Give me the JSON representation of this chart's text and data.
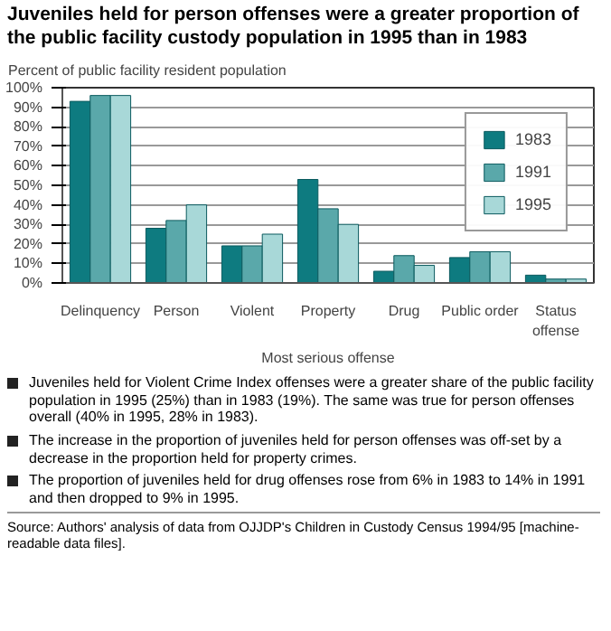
{
  "chart_data": {
    "type": "bar",
    "title": "Juveniles held for person offenses were a greater proportion of the public facility custody population in 1995 than in 1983",
    "ylabel": "Percent of public facility resident population",
    "xlabel": "Most serious offense",
    "categories": [
      "Delinquency",
      "Person",
      "Violent",
      "Property",
      "Drug",
      "Public order",
      "Status offense"
    ],
    "series": [
      {
        "name": "1983",
        "color": "#0e7b80",
        "values": [
          93,
          28,
          19,
          53,
          6,
          13,
          4
        ]
      },
      {
        "name": "1991",
        "color": "#5aa8aa",
        "values": [
          96,
          32,
          19,
          38,
          14,
          16,
          2
        ]
      },
      {
        "name": "1995",
        "color": "#a8d8d8",
        "values": [
          96,
          40,
          25,
          30,
          9,
          16,
          2
        ]
      }
    ],
    "ylim": [
      0,
      100
    ],
    "yticks": [
      {
        "value": 0,
        "label": "0%"
      },
      {
        "value": 10,
        "label": "10%"
      },
      {
        "value": 20,
        "label": "20%"
      },
      {
        "value": 30,
        "label": "30%"
      },
      {
        "value": 40,
        "label": "40%"
      },
      {
        "value": 50,
        "label": "50%"
      },
      {
        "value": 60,
        "label": "60%"
      },
      {
        "value": 70,
        "label": "70%"
      },
      {
        "value": 80,
        "label": "80%"
      },
      {
        "value": 90,
        "label": "90%"
      },
      {
        "value": 100,
        "label": "100%"
      }
    ],
    "grid": "y",
    "legend": "top right",
    "annotations": [
      "Juveniles held for Violent Crime Index offenses were a greater share of the public facility population in 1995 (25%) than in 1983 (19%). The same was true for person offenses overall (40% in 1995, 28% in 1983).",
      "The increase in the proportion of juveniles held for person offenses was off-set by a decrease in the proportion held for property crimes.",
      "The proportion of juveniles held for drug offenses rose from 6% in 1983 to 14% in 1991 and then dropped to 9% in 1995.",
      "Source: Authors' analysis of data from OJJDP's Children in Custody Census 1994/95 [machine-readable data files]."
    ]
  }
}
